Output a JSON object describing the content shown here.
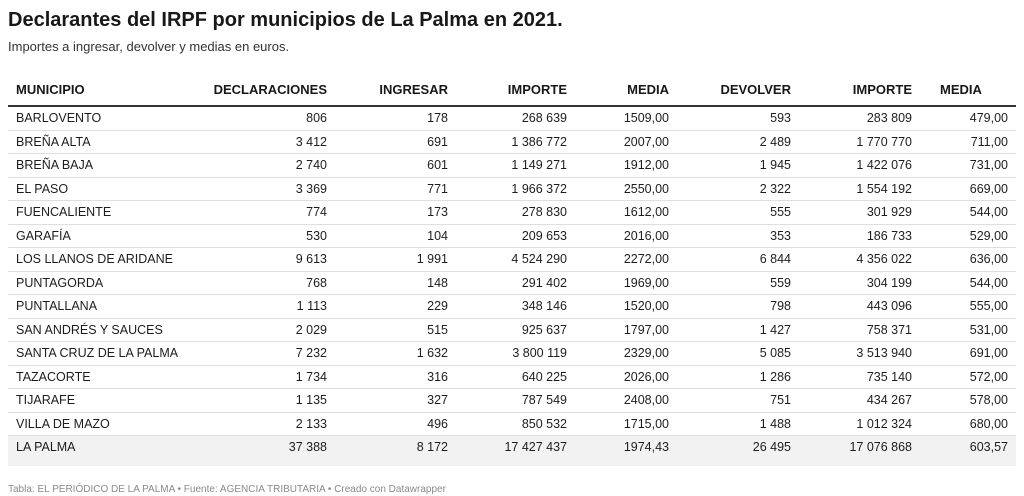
{
  "title": "Declarantes del IRPF por municipios de La Palma en 2021.",
  "subtitle": "Importes a ingresar, devolver y medias en euros.",
  "columns": [
    "MUNICIPIO",
    "DECLARACIONES",
    "INGRESAR",
    "IMPORTE",
    "MEDIA",
    "DEVOLVER",
    "IMPORTE",
    "MEDIA"
  ],
  "rows": [
    [
      "BARLOVENTO",
      "806",
      "178",
      "268 639",
      "1509,00",
      "593",
      "283 809",
      "479,00"
    ],
    [
      "BREÑA ALTA",
      "3 412",
      "691",
      "1 386 772",
      "2007,00",
      "2 489",
      "1 770 770",
      "711,00"
    ],
    [
      "BREÑA BAJA",
      "2 740",
      "601",
      "1 149 271",
      "1912,00",
      "1 945",
      "1 422 076",
      "731,00"
    ],
    [
      "EL PASO",
      "3 369",
      "771",
      "1 966 372",
      "2550,00",
      "2 322",
      "1 554 192",
      "669,00"
    ],
    [
      "FUENCALIENTE",
      "774",
      "173",
      "278 830",
      "1612,00",
      "555",
      "301 929",
      "544,00"
    ],
    [
      "GARAFÍA",
      "530",
      "104",
      "209 653",
      "2016,00",
      "353",
      "186 733",
      "529,00"
    ],
    [
      "LOS LLANOS DE ARIDANE",
      "9 613",
      "1 991",
      "4 524 290",
      "2272,00",
      "6 844",
      "4 356 022",
      "636,00"
    ],
    [
      "PUNTAGORDA",
      "768",
      "148",
      "291 402",
      "1969,00",
      "559",
      "304 199",
      "544,00"
    ],
    [
      "PUNTALLANA",
      "1 113",
      "229",
      "348 146",
      "1520,00",
      "798",
      "443 096",
      "555,00"
    ],
    [
      "SAN ANDRÉS Y SAUCES",
      "2 029",
      "515",
      "925 637",
      "1797,00",
      "1 427",
      "758 371",
      "531,00"
    ],
    [
      "SANTA CRUZ DE LA PALMA",
      "7 232",
      "1 632",
      "3 800 119",
      "2329,00",
      "5 085",
      "3 513 940",
      "691,00"
    ],
    [
      "TAZACORTE",
      "1 734",
      "316",
      "640 225",
      "2026,00",
      "1 286",
      "735 140",
      "572,00"
    ],
    [
      "TIJARAFE",
      "1 135",
      "327",
      "787 549",
      "2408,00",
      "751",
      "434 267",
      "578,00"
    ],
    [
      "VILLA DE MAZO",
      "2 133",
      "496",
      "850 532",
      "1715,00",
      "1 488",
      "1 012 324",
      "680,00"
    ]
  ],
  "total": [
    "LA PALMA",
    "37 388",
    "8 172",
    "17 427 437",
    "1974,43",
    "26 495",
    "17 076 868",
    "603,57"
  ],
  "footer": "Tabla: EL PERIÓDICO DE LA PALMA • Fuente: AGENCIA TRIBUTARIA • Creado con Datawrapper"
}
